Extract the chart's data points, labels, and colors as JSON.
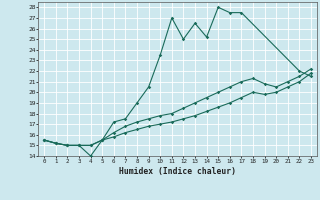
{
  "title": "",
  "xlabel": "Humidex (Indice chaleur)",
  "xlim": [
    -0.5,
    23.5
  ],
  "ylim": [
    14,
    28.5
  ],
  "xticks": [
    0,
    1,
    2,
    3,
    4,
    5,
    6,
    7,
    8,
    9,
    10,
    11,
    12,
    13,
    14,
    15,
    16,
    17,
    18,
    19,
    20,
    21,
    22,
    23
  ],
  "yticks": [
    14,
    15,
    16,
    17,
    18,
    19,
    20,
    21,
    22,
    23,
    24,
    25,
    26,
    27,
    28
  ],
  "bg_color": "#cde8ee",
  "grid_color": "#ffffff",
  "line_color": "#1a6b5a",
  "line1_x": [
    0,
    1,
    2,
    3,
    4,
    5,
    6,
    7,
    8,
    9,
    10,
    11,
    12,
    13,
    14,
    15,
    16,
    17,
    22,
    23
  ],
  "line1_y": [
    15.5,
    15.2,
    15.0,
    15.0,
    14.0,
    15.5,
    17.2,
    17.5,
    19.0,
    20.5,
    23.5,
    27.0,
    25.0,
    26.5,
    25.2,
    28.0,
    27.5,
    27.5,
    22.0,
    21.5
  ],
  "line2_x": [
    0,
    1,
    2,
    3,
    4,
    5,
    6,
    7,
    8,
    9,
    10,
    11,
    12,
    13,
    14,
    15,
    16,
    17,
    18,
    19,
    20,
    21,
    22,
    23
  ],
  "line2_y": [
    15.5,
    15.2,
    15.0,
    15.0,
    15.0,
    15.5,
    16.2,
    16.8,
    17.2,
    17.5,
    17.8,
    18.0,
    18.5,
    19.0,
    19.5,
    20.0,
    20.5,
    21.0,
    21.3,
    20.8,
    20.5,
    21.0,
    21.5,
    22.2
  ],
  "line3_x": [
    0,
    1,
    2,
    3,
    4,
    5,
    6,
    7,
    8,
    9,
    10,
    11,
    12,
    13,
    14,
    15,
    16,
    17,
    18,
    19,
    20,
    21,
    22,
    23
  ],
  "line3_y": [
    15.5,
    15.2,
    15.0,
    15.0,
    15.0,
    15.5,
    15.8,
    16.2,
    16.5,
    16.8,
    17.0,
    17.2,
    17.5,
    17.8,
    18.2,
    18.6,
    19.0,
    19.5,
    20.0,
    19.8,
    20.0,
    20.5,
    21.0,
    21.8
  ]
}
